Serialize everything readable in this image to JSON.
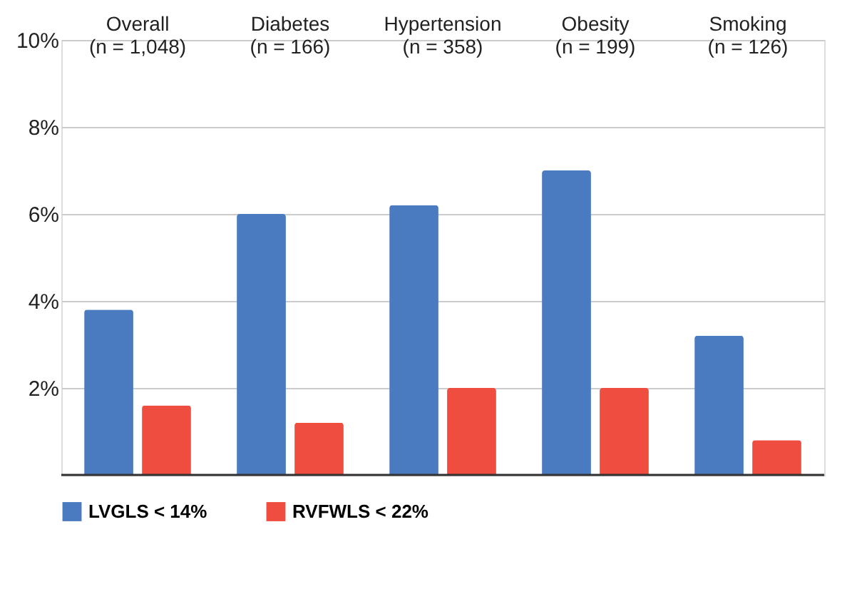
{
  "chart_data": {
    "type": "bar",
    "categories": [
      "Overall\n(n = 1,048)",
      "Diabetes\n(n = 166)",
      "Hypertension\n(n = 358)",
      "Obesity\n(n = 199)",
      "Smoking\n(n = 126)"
    ],
    "series": [
      {
        "name": "LVGLS < 14%",
        "color": "#4a7abf",
        "values": [
          3.8,
          6.0,
          6.2,
          7.0,
          3.2
        ]
      },
      {
        "name": "RVFWLS < 22%",
        "color": "#ee4d3f",
        "values": [
          1.6,
          1.2,
          2.0,
          2.0,
          0.8
        ]
      }
    ],
    "ylim": [
      0,
      10
    ],
    "yticks": [
      {
        "value": 0,
        "label": null
      },
      {
        "value": 2,
        "label": "2%"
      },
      {
        "value": 4,
        "label": "4%"
      },
      {
        "value": 6,
        "label": "6%"
      },
      {
        "value": 8,
        "label": "8%"
      },
      {
        "value": 10,
        "label": "10%"
      }
    ],
    "grid": "y",
    "legend": "bottom"
  }
}
